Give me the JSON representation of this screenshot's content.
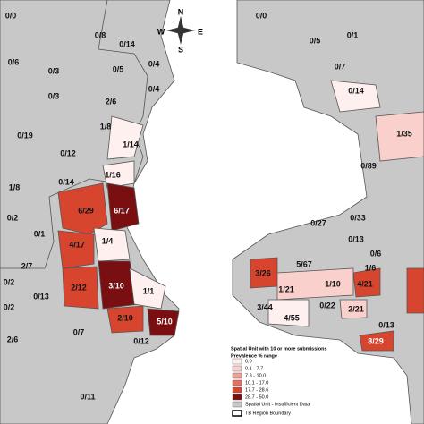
{
  "compass": {
    "north": "N",
    "east": "E",
    "south": "S",
    "west": "W"
  },
  "left_map": {
    "labels": [
      "0/0",
      "0/6",
      "0/8",
      "0/14",
      "0/3",
      "0/5",
      "0/4",
      "0/4",
      "2/6",
      "0/3",
      "1/8",
      "0/19",
      "1/14",
      "0/12",
      "1/16",
      "0/14",
      "1/8",
      "0/2",
      "6/29",
      "6/17",
      "0/1",
      "4/17",
      "1/4",
      "2/7",
      "0/2",
      "2/12",
      "3/10",
      "1/1",
      "0/2",
      "0/13",
      "2/6",
      "0/7",
      "2/10",
      "5/10",
      "0/12",
      "0/11"
    ]
  },
  "right_map": {
    "labels": [
      "0/0",
      "0/1",
      "0/5",
      "0/7",
      "0/14",
      "1/35",
      "0/89",
      "0/33",
      "0/27",
      "0/13",
      "0/6",
      "5/67",
      "1/6",
      "3/26",
      "1/21",
      "1/10",
      "4/21",
      "0/22",
      "2/21",
      "3/44",
      "4/55",
      "0/13",
      "8/29"
    ]
  },
  "legend": {
    "title": "Spatial Unit with 10 or more submissions",
    "subtitle": "Prevalence % range",
    "items": [
      {
        "label": "0.0",
        "color": "#fdf0ef"
      },
      {
        "label": "0.1 - 7.7",
        "color": "#f9d0cc"
      },
      {
        "label": "7.8 - 10.0",
        "color": "#f1a096"
      },
      {
        "label": "10.1 - 17.0",
        "color": "#e8705f"
      },
      {
        "label": "17.7 - 28.6",
        "color": "#d8452f"
      },
      {
        "label": "28.7 - 50.0",
        "color": "#7a0f12"
      }
    ],
    "insufficient": {
      "label": "Spatial Unit - Insufficient Data",
      "color": "#c8c8c8"
    },
    "boundary": "TB Region Boundary"
  }
}
